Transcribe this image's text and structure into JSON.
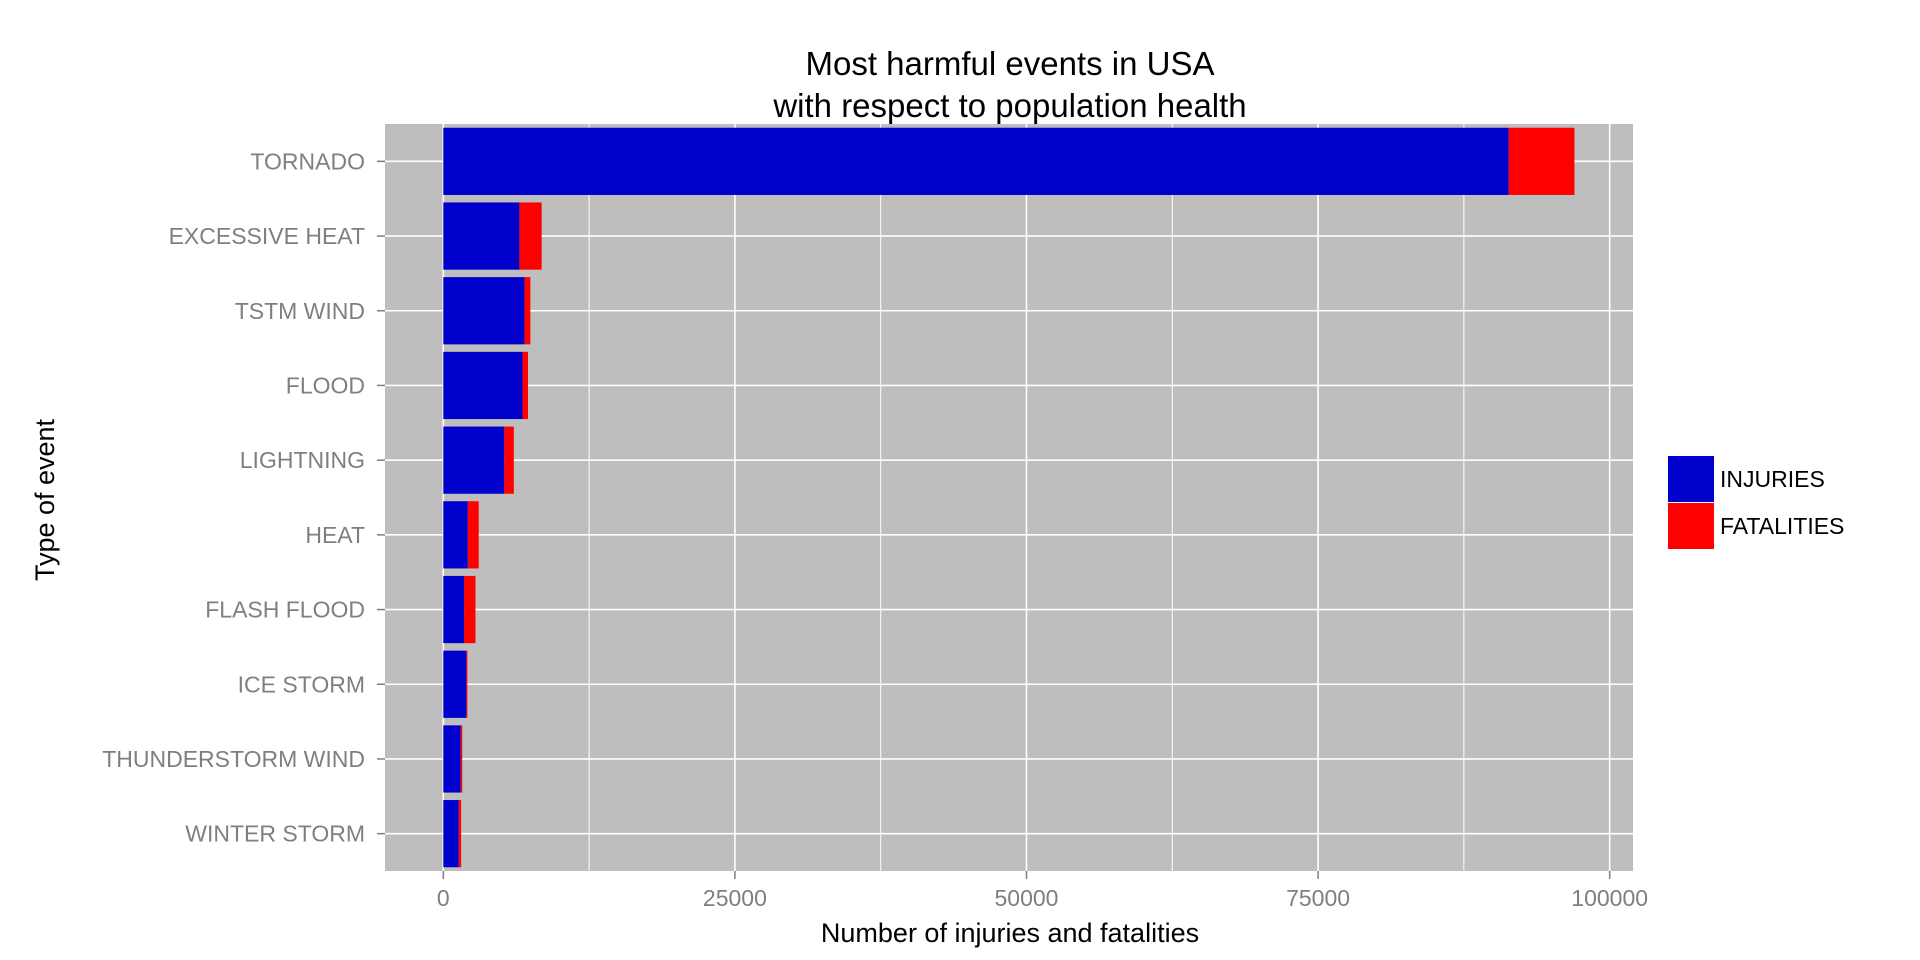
{
  "chart_data": {
    "type": "bar",
    "orientation": "horizontal",
    "stacked": true,
    "title": "Most harmful events in USA\nwith respect to population health",
    "title_lines": [
      "Most harmful events in USA",
      "with respect to population health"
    ],
    "xlabel": "Number of injuries and fatalities",
    "ylabel": "Type of event",
    "xlim": [
      -5000,
      102000
    ],
    "xticks": [
      0,
      25000,
      50000,
      75000,
      100000
    ],
    "xtick_labels": [
      "0",
      "25000",
      "50000",
      "75000",
      "100000"
    ],
    "grid": true,
    "background_color": "#bebebe",
    "grid_color": "#ffffff",
    "legend_position": "right",
    "categories": [
      "TORNADO",
      "EXCESSIVE HEAT",
      "TSTM WIND",
      "FLOOD",
      "LIGHTNING",
      "HEAT",
      "FLASH FLOOD",
      "ICE STORM",
      "THUNDERSTORM WIND",
      "WINTER STORM"
    ],
    "series": [
      {
        "name": "INJURIES",
        "color": "#0000cd",
        "values": [
          91346,
          6525,
          6957,
          6789,
          5230,
          2100,
          1777,
          1975,
          1488,
          1321
        ]
      },
      {
        "name": "FATALITIES",
        "color": "#ff0000",
        "values": [
          5633,
          1903,
          504,
          470,
          816,
          937,
          978,
          89,
          133,
          206
        ]
      }
    ]
  }
}
